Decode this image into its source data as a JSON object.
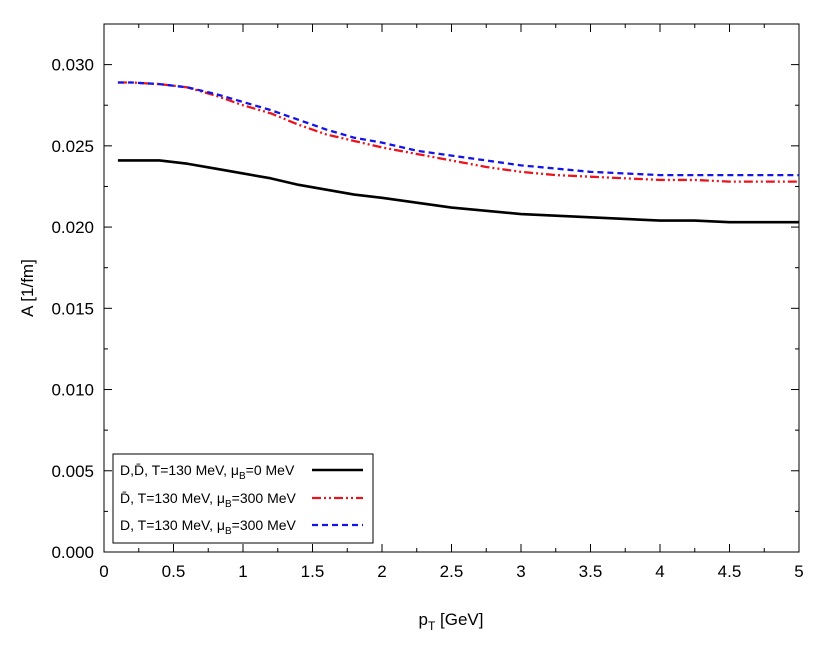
{
  "chart_data": {
    "type": "line",
    "xlabel": {
      "main": "p",
      "sub": "T",
      "rest": " [GeV]"
    },
    "ylabel": "A [1/fm]",
    "xlim": [
      0,
      5
    ],
    "ylim": [
      0,
      0.0325
    ],
    "xticks": [
      0,
      0.5,
      1,
      1.5,
      2,
      2.5,
      3,
      3.5,
      4,
      4.5,
      5
    ],
    "xtick_labels": [
      "0",
      "0.5",
      "1",
      "1.5",
      "2",
      "2.5",
      "3",
      "3.5",
      "4",
      "4.5",
      "5"
    ],
    "yticks": [
      0,
      0.005,
      0.01,
      0.015,
      0.02,
      0.025,
      0.03
    ],
    "ytick_labels": [
      "0.000",
      "0.005",
      "0.010",
      "0.015",
      "0.020",
      "0.025",
      "0.030"
    ],
    "grid": false,
    "legend_position": "bottom-left",
    "series": [
      {
        "legend": {
          "pre": "D,D̄, T=130 MeV, μ",
          "sub": "B",
          "post": "=0 MeV"
        },
        "color": "#000000",
        "style": "solid",
        "x": [
          0.1,
          0.2,
          0.4,
          0.6,
          0.8,
          1.0,
          1.2,
          1.4,
          1.6,
          1.8,
          2.0,
          2.25,
          2.5,
          2.75,
          3.0,
          3.25,
          3.5,
          3.75,
          4.0,
          4.25,
          4.5,
          4.75,
          5.0
        ],
        "y": [
          0.0241,
          0.0241,
          0.0241,
          0.0239,
          0.0236,
          0.0233,
          0.023,
          0.0226,
          0.0223,
          0.022,
          0.0218,
          0.0215,
          0.0212,
          0.021,
          0.0208,
          0.0207,
          0.0206,
          0.0205,
          0.0204,
          0.0204,
          0.0203,
          0.0203,
          0.0203
        ]
      },
      {
        "legend": {
          "pre": "D̄, T=130 MeV, μ",
          "sub": "B",
          "post": "=300 MeV"
        },
        "color": "#e8141e",
        "style": "dash-dot-dot",
        "x": [
          0.1,
          0.2,
          0.4,
          0.6,
          0.8,
          1.0,
          1.2,
          1.4,
          1.6,
          1.8,
          2.0,
          2.25,
          2.5,
          2.75,
          3.0,
          3.25,
          3.5,
          3.75,
          4.0,
          4.25,
          4.5,
          4.75,
          5.0
        ],
        "y": [
          0.0289,
          0.0289,
          0.0288,
          0.0286,
          0.0281,
          0.0275,
          0.027,
          0.0263,
          0.0257,
          0.0253,
          0.0249,
          0.0245,
          0.0241,
          0.0237,
          0.0234,
          0.0232,
          0.0231,
          0.023,
          0.0229,
          0.0229,
          0.0228,
          0.0228,
          0.0228
        ]
      },
      {
        "legend": {
          "pre": "D, T=130 MeV, μ",
          "sub": "B",
          "post": "=300 MeV"
        },
        "color": "#1414e6",
        "style": "dashed",
        "x": [
          0.1,
          0.2,
          0.4,
          0.6,
          0.8,
          1.0,
          1.2,
          1.4,
          1.6,
          1.8,
          2.0,
          2.25,
          2.5,
          2.75,
          3.0,
          3.25,
          3.5,
          3.75,
          4.0,
          4.25,
          4.5,
          4.75,
          5.0
        ],
        "y": [
          0.0289,
          0.0289,
          0.0288,
          0.0286,
          0.0282,
          0.0277,
          0.0272,
          0.0266,
          0.026,
          0.0255,
          0.0252,
          0.0247,
          0.0244,
          0.0241,
          0.0238,
          0.0236,
          0.0234,
          0.0233,
          0.0232,
          0.0232,
          0.0232,
          0.0232,
          0.0232
        ]
      }
    ]
  }
}
